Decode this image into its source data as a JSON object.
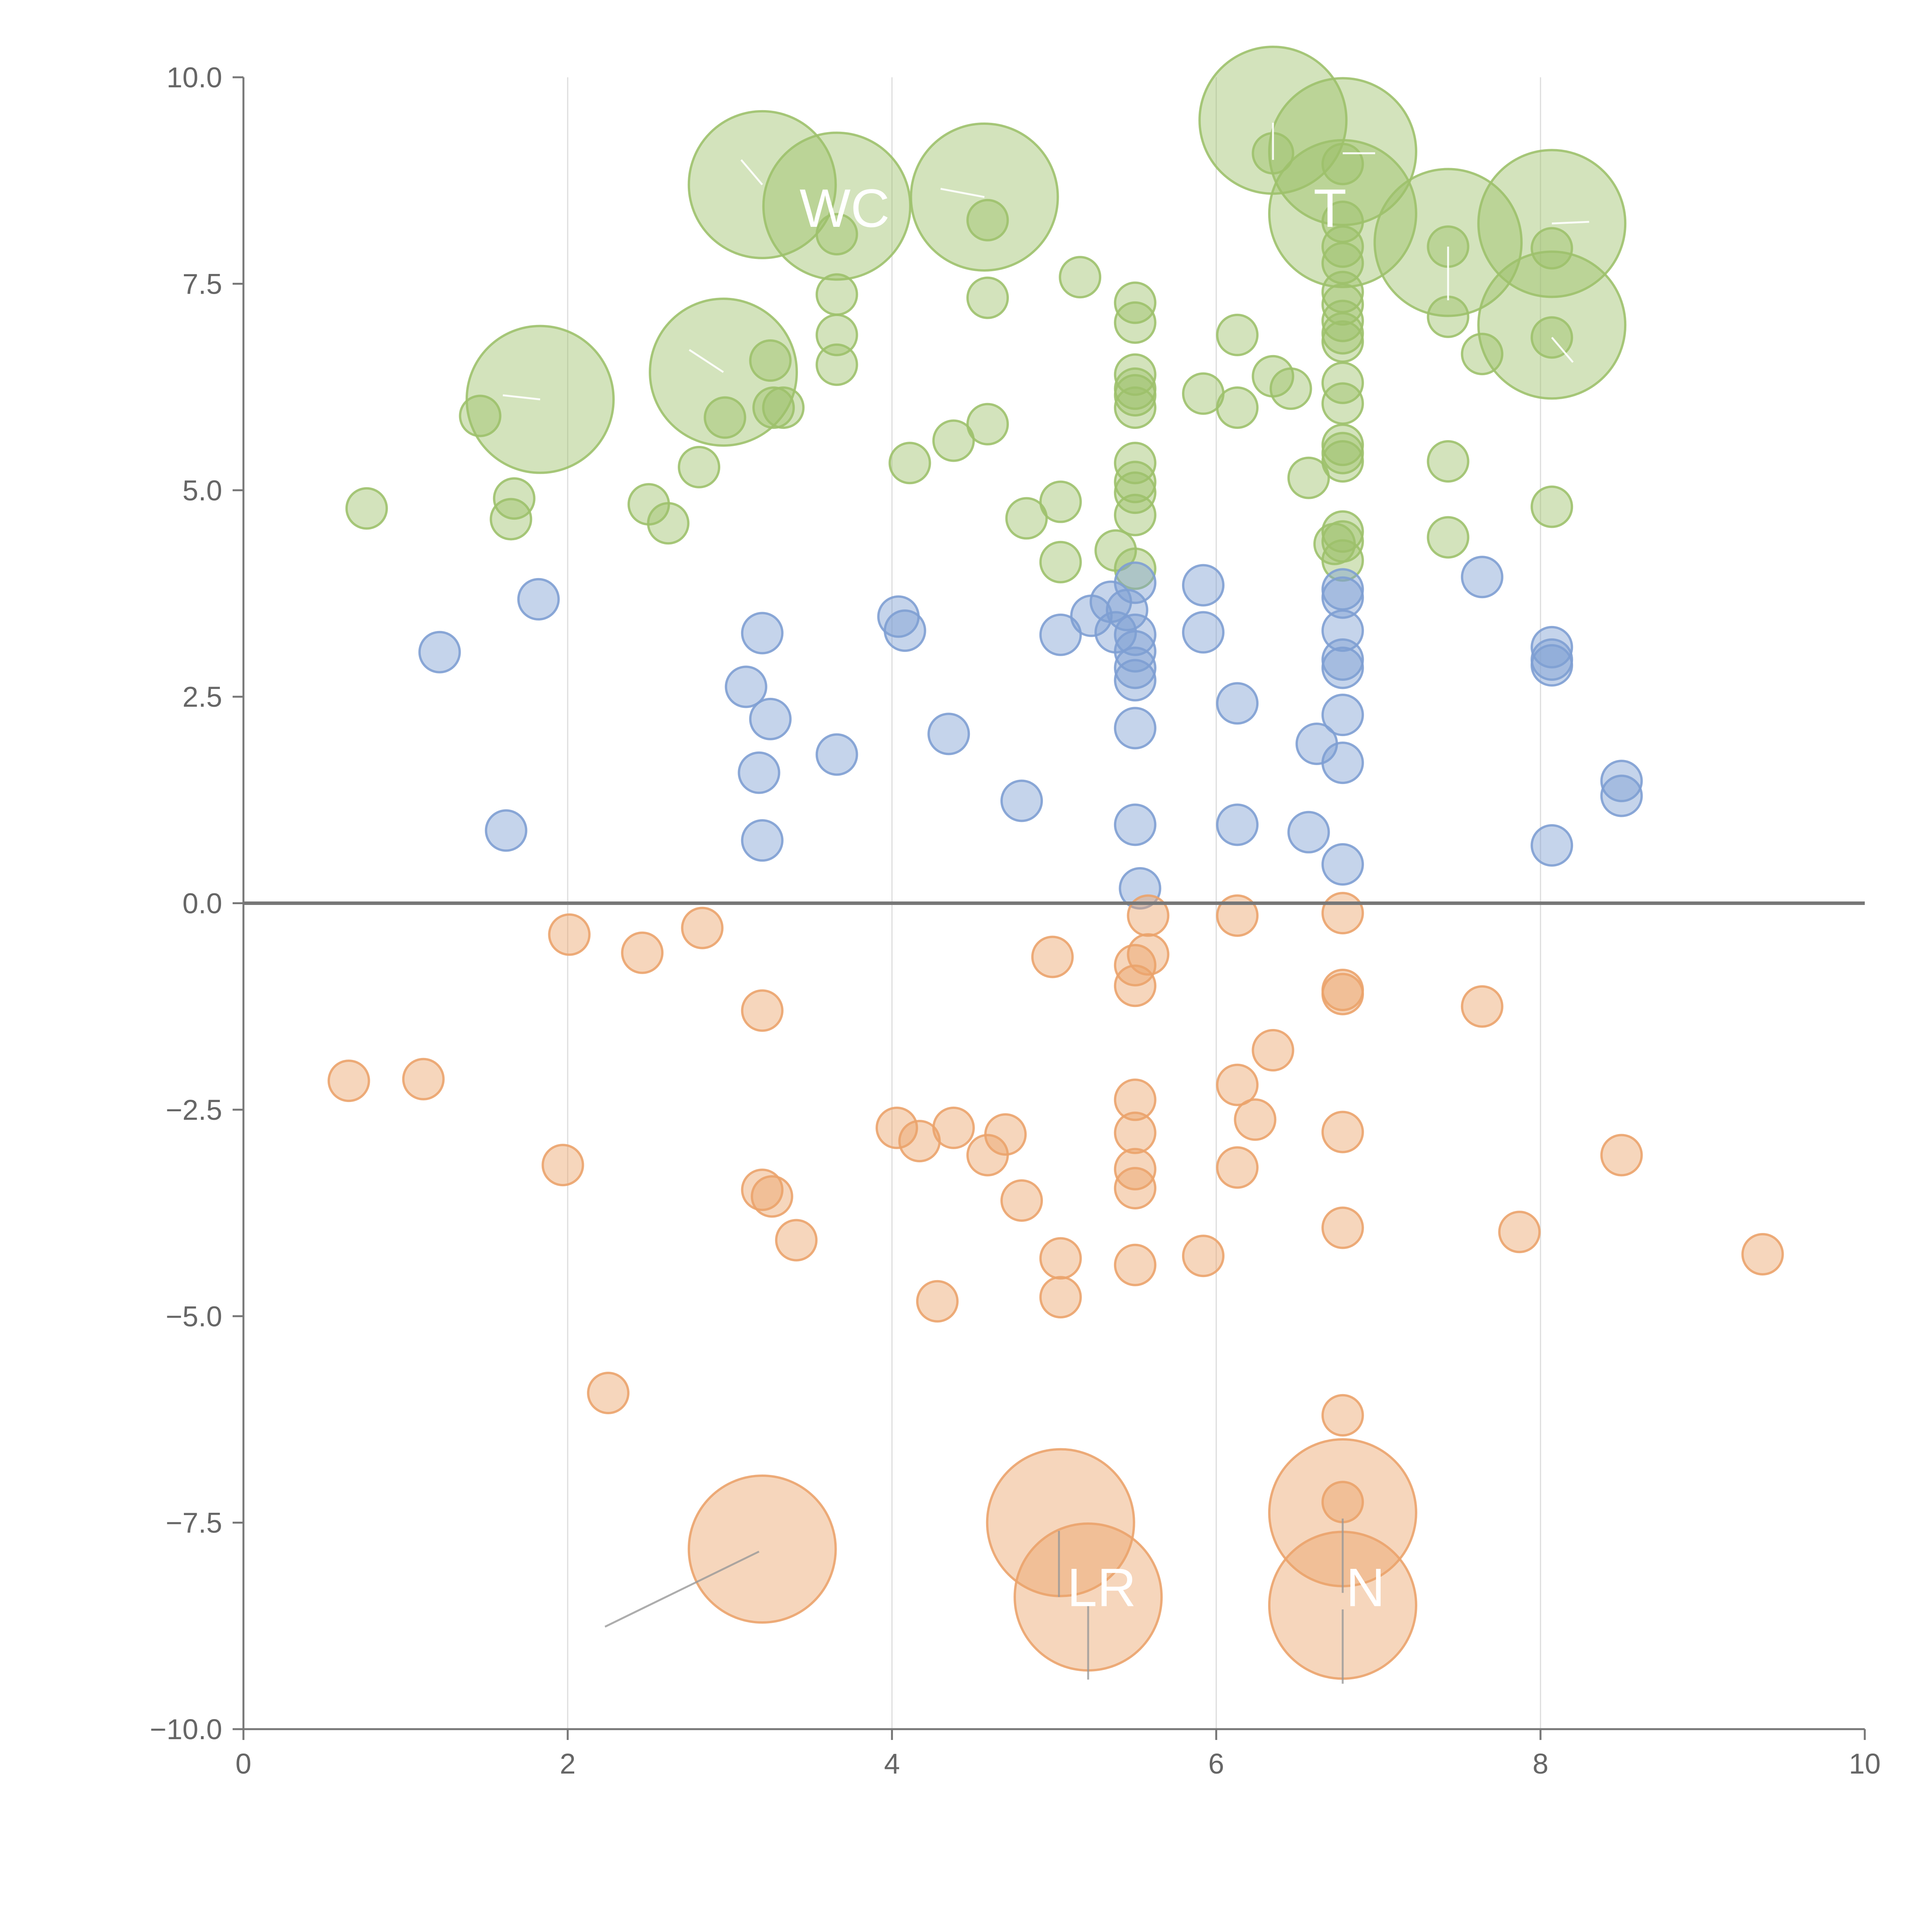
{
  "chart_data": {
    "type": "scatter",
    "title": "",
    "xlabel": "",
    "ylabel": "",
    "xlim": [
      0,
      10
    ],
    "ylim": [
      -10,
      10
    ],
    "grid": "vertical",
    "legend": "none",
    "zero_line": true,
    "x_ticks": [
      "0",
      "2",
      "4",
      "6",
      "8",
      "10"
    ],
    "x_tick_values": [
      0,
      2,
      4,
      6,
      8,
      10
    ],
    "y_ticks": [
      "10.0",
      "7.5",
      "5.0",
      "2.5",
      "0.0",
      "−2.5",
      "−5.0",
      "−7.5",
      "−10.0"
    ],
    "y_tick_values": [
      10,
      7.5,
      5,
      2.5,
      0,
      -2.5,
      -5,
      -7.5,
      -10
    ],
    "series": [
      {
        "name": "green",
        "color": "#9dc16b",
        "points": [
          [
            0.76,
            4.78,
            1
          ],
          [
            1.46,
            5.9,
            1
          ],
          [
            1.65,
            4.65,
            1
          ],
          [
            1.67,
            4.9,
            1
          ],
          [
            1.83,
            6.1,
            3
          ],
          [
            2.5,
            4.83,
            1
          ],
          [
            2.62,
            4.6,
            1
          ],
          [
            2.81,
            5.28,
            1
          ],
          [
            2.97,
            5.88,
            1
          ],
          [
            2.96,
            6.43,
            3
          ],
          [
            3.25,
            6.57,
            1
          ],
          [
            3.2,
            8.7,
            3
          ],
          [
            3.27,
            6.0,
            1
          ],
          [
            3.33,
            6.0,
            1
          ],
          [
            3.66,
            8.44,
            3
          ],
          [
            3.66,
            8.1,
            1
          ],
          [
            3.66,
            7.37,
            1
          ],
          [
            3.66,
            6.88,
            1
          ],
          [
            3.66,
            6.52,
            1
          ],
          [
            4.11,
            5.33,
            1
          ],
          [
            4.38,
            5.6,
            1
          ],
          [
            4.57,
            8.55,
            3
          ],
          [
            4.59,
            8.27,
            1
          ],
          [
            4.59,
            7.33,
            1
          ],
          [
            4.59,
            5.8,
            1
          ],
          [
            4.83,
            4.66,
            1
          ],
          [
            5.04,
            4.86,
            1
          ],
          [
            5.04,
            4.13,
            1
          ],
          [
            5.16,
            7.58,
            1
          ],
          [
            5.38,
            4.27,
            1
          ],
          [
            5.5,
            7.27,
            1
          ],
          [
            5.5,
            7.03,
            1
          ],
          [
            5.5,
            6.4,
            1
          ],
          [
            5.5,
            6.23,
            1
          ],
          [
            5.5,
            6.15,
            1
          ],
          [
            5.5,
            6.0,
            1
          ],
          [
            5.5,
            5.33,
            1
          ],
          [
            5.5,
            5.1,
            1
          ],
          [
            5.5,
            4.97,
            1
          ],
          [
            5.5,
            4.7,
            1
          ],
          [
            5.5,
            4.05,
            1
          ],
          [
            5.92,
            6.17,
            1
          ],
          [
            6.13,
            6.88,
            1
          ],
          [
            6.13,
            6.0,
            1
          ],
          [
            6.35,
            9.48,
            3
          ],
          [
            6.35,
            9.08,
            1
          ],
          [
            6.35,
            6.38,
            1
          ],
          [
            6.46,
            6.23,
            1
          ],
          [
            6.57,
            5.15,
            1
          ],
          [
            6.78,
            9.1,
            3
          ],
          [
            6.78,
            8.95,
            1
          ],
          [
            6.78,
            8.35,
            3
          ],
          [
            6.78,
            8.25,
            1
          ],
          [
            6.78,
            7.95,
            1
          ],
          [
            6.78,
            7.75,
            1
          ],
          [
            6.78,
            7.4,
            1
          ],
          [
            6.78,
            7.25,
            1
          ],
          [
            6.78,
            7.05,
            1
          ],
          [
            6.78,
            6.9,
            1
          ],
          [
            6.78,
            6.8,
            1
          ],
          [
            6.78,
            6.3,
            1
          ],
          [
            6.78,
            6.05,
            1
          ],
          [
            6.78,
            5.55,
            1
          ],
          [
            6.78,
            5.45,
            1
          ],
          [
            6.78,
            5.35,
            1
          ],
          [
            6.78,
            4.5,
            1
          ],
          [
            6.78,
            4.38,
            1
          ],
          [
            6.78,
            4.15,
            1
          ],
          [
            6.73,
            4.35,
            1
          ],
          [
            7.43,
            8.0,
            3
          ],
          [
            7.43,
            7.95,
            1
          ],
          [
            7.43,
            7.1,
            1
          ],
          [
            7.43,
            5.35,
            1
          ],
          [
            7.43,
            4.43,
            1
          ],
          [
            7.64,
            6.65,
            1
          ],
          [
            8.07,
            8.23,
            3
          ],
          [
            8.07,
            7.93,
            1
          ],
          [
            8.07,
            7.0,
            3
          ],
          [
            8.07,
            6.85,
            1
          ],
          [
            8.07,
            4.8,
            1
          ]
        ]
      },
      {
        "name": "blue",
        "color": "#7e9fd3",
        "points": [
          [
            1.21,
            3.04,
            1
          ],
          [
            1.62,
            0.88,
            1
          ],
          [
            1.82,
            3.68,
            1
          ],
          [
            3.1,
            2.62,
            1
          ],
          [
            3.18,
            1.58,
            1
          ],
          [
            3.2,
            3.27,
            1
          ],
          [
            3.2,
            0.76,
            1
          ],
          [
            3.25,
            2.23,
            1
          ],
          [
            3.66,
            1.8,
            1
          ],
          [
            4.04,
            3.47,
            1
          ],
          [
            4.08,
            3.3,
            1
          ],
          [
            4.35,
            2.05,
            1
          ],
          [
            4.8,
            1.24,
            1
          ],
          [
            5.04,
            3.25,
            1
          ],
          [
            5.23,
            3.48,
            1
          ],
          [
            5.35,
            3.65,
            1
          ],
          [
            5.38,
            3.28,
            1
          ],
          [
            5.45,
            3.55,
            1
          ],
          [
            5.5,
            3.88,
            1
          ],
          [
            5.5,
            3.25,
            1
          ],
          [
            5.5,
            3.05,
            1
          ],
          [
            5.5,
            2.85,
            1
          ],
          [
            5.5,
            2.7,
            1
          ],
          [
            5.5,
            2.12,
            1
          ],
          [
            5.5,
            0.95,
            1
          ],
          [
            5.53,
            0.18,
            1
          ],
          [
            5.92,
            3.85,
            1
          ],
          [
            5.92,
            3.28,
            1
          ],
          [
            6.13,
            2.42,
            1
          ],
          [
            6.13,
            0.95,
            1
          ],
          [
            6.57,
            0.86,
            1
          ],
          [
            6.62,
            1.93,
            1
          ],
          [
            6.78,
            3.8,
            1
          ],
          [
            6.78,
            3.7,
            1
          ],
          [
            6.78,
            3.3,
            1
          ],
          [
            6.78,
            2.95,
            1
          ],
          [
            6.78,
            2.85,
            1
          ],
          [
            6.78,
            2.28,
            1
          ],
          [
            6.78,
            1.7,
            1
          ],
          [
            6.78,
            0.47,
            1
          ],
          [
            7.64,
            3.95,
            1
          ],
          [
            8.07,
            3.1,
            1
          ],
          [
            8.07,
            2.95,
            1
          ],
          [
            8.07,
            2.88,
            1
          ],
          [
            8.07,
            0.7,
            1
          ],
          [
            8.5,
            1.48,
            1
          ],
          [
            8.5,
            1.3,
            1
          ]
        ]
      },
      {
        "name": "orange",
        "color": "#eba36b",
        "points": [
          [
            0.65,
            -2.15,
            1
          ],
          [
            1.11,
            -2.13,
            1
          ],
          [
            1.97,
            -3.17,
            1
          ],
          [
            2.01,
            -0.38,
            1
          ],
          [
            2.25,
            -5.93,
            1
          ],
          [
            2.46,
            -0.6,
            1
          ],
          [
            2.83,
            -0.3,
            1
          ],
          [
            3.2,
            -1.3,
            1
          ],
          [
            3.2,
            -3.47,
            1
          ],
          [
            3.26,
            -3.55,
            1
          ],
          [
            3.41,
            -4.08,
            1
          ],
          [
            3.2,
            -7.82,
            3
          ],
          [
            4.03,
            -2.72,
            1
          ],
          [
            4.17,
            -2.88,
            1
          ],
          [
            4.28,
            -4.82,
            1
          ],
          [
            4.38,
            -2.72,
            1
          ],
          [
            4.59,
            -3.05,
            1
          ],
          [
            4.7,
            -2.8,
            1
          ],
          [
            4.8,
            -3.6,
            1
          ],
          [
            4.99,
            -0.65,
            1
          ],
          [
            5.04,
            -4.3,
            1
          ],
          [
            5.04,
            -4.77,
            1
          ],
          [
            5.04,
            -7.5,
            3
          ],
          [
            5.21,
            -8.4,
            3
          ],
          [
            5.5,
            -0.75,
            1
          ],
          [
            5.5,
            -1.0,
            1
          ],
          [
            5.5,
            -2.38,
            1
          ],
          [
            5.5,
            -2.78,
            1
          ],
          [
            5.5,
            -3.22,
            1
          ],
          [
            5.5,
            -3.45,
            1
          ],
          [
            5.5,
            -4.38,
            1
          ],
          [
            5.58,
            -0.15,
            1
          ],
          [
            5.58,
            -0.62,
            1
          ],
          [
            5.92,
            -4.27,
            1
          ],
          [
            6.13,
            -0.15,
            1
          ],
          [
            6.13,
            -2.2,
            1
          ],
          [
            6.13,
            -3.2,
            1
          ],
          [
            6.24,
            -2.62,
            1
          ],
          [
            6.35,
            -1.78,
            1
          ],
          [
            6.78,
            -0.12,
            1
          ],
          [
            6.78,
            -1.05,
            1
          ],
          [
            6.78,
            -1.1,
            1
          ],
          [
            6.78,
            -2.77,
            1
          ],
          [
            6.78,
            -3.93,
            1
          ],
          [
            6.78,
            -6.2,
            1
          ],
          [
            6.78,
            -7.25,
            1
          ],
          [
            6.78,
            -7.38,
            3
          ],
          [
            6.78,
            -8.5,
            3
          ],
          [
            7.64,
            -1.25,
            1
          ],
          [
            7.87,
            -3.98,
            1
          ],
          [
            8.5,
            -3.05,
            1
          ],
          [
            9.37,
            -4.25,
            1
          ]
        ]
      }
    ],
    "annotations": [
      {
        "text": "LR",
        "x": 5.08,
        "y": -8.3
      },
      {
        "text": "N",
        "x": 6.8,
        "y": -8.3
      },
      {
        "text": "T",
        "x": 6.6,
        "y": 8.4
      },
      {
        "text": "WC",
        "x": 3.43,
        "y": 8.4
      }
    ],
    "leader_lines": [
      [
        [
          3.18,
          -7.85
        ],
        [
          2.23,
          -8.76
        ]
      ],
      [
        [
          5.03,
          -7.6
        ],
        [
          5.03,
          -8.4
        ]
      ],
      [
        [
          5.21,
          -8.5
        ],
        [
          5.21,
          -9.4
        ]
      ],
      [
        [
          6.78,
          -7.45
        ],
        [
          6.78,
          -8.35
        ]
      ],
      [
        [
          6.78,
          -8.55
        ],
        [
          6.78,
          -9.45
        ]
      ],
      [
        [
          3.2,
          8.7
        ],
        [
          3.07,
          9.0
        ]
      ],
      [
        [
          4.57,
          8.55
        ],
        [
          4.3,
          8.65
        ]
      ],
      [
        [
          6.35,
          9.45
        ],
        [
          6.35,
          9.0
        ]
      ],
      [
        [
          6.78,
          9.08
        ],
        [
          6.98,
          9.08
        ]
      ],
      [
        [
          8.07,
          8.23
        ],
        [
          8.3,
          8.25
        ]
      ],
      [
        [
          7.43,
          7.95
        ],
        [
          7.43,
          7.3
        ]
      ],
      [
        [
          8.07,
          6.85
        ],
        [
          8.2,
          6.55
        ]
      ],
      [
        [
          1.83,
          6.1
        ],
        [
          1.6,
          6.15
        ]
      ],
      [
        [
          2.96,
          6.43
        ],
        [
          2.75,
          6.7
        ]
      ]
    ]
  }
}
